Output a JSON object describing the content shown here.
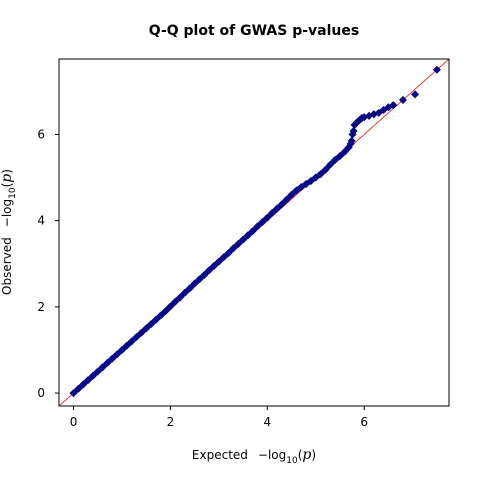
{
  "chart_data": {
    "type": "scatter",
    "title": "Q-Q plot of GWAS p-values",
    "xlabel": {
      "prefix": "Expected",
      "minus": "−log",
      "subscript": "10",
      "open": "(",
      "var": "p",
      "close": ")"
    },
    "ylabel": {
      "prefix": "Observed",
      "minus": "−log",
      "subscript": "10",
      "open": "(",
      "var": "p",
      "close": ")"
    },
    "xlim": [
      -0.3,
      7.75
    ],
    "ylim": [
      -0.3,
      7.75
    ],
    "xticks": [
      "0",
      "2",
      "4",
      "6"
    ],
    "yticks": [
      "0",
      "2",
      "4",
      "6"
    ],
    "grid": false,
    "reference_line": {
      "slope": 1,
      "intercept": 0
    },
    "colors": {
      "marker": "#0a0a8c",
      "marker_edge": "#00006a",
      "reference_line": "#e8352b",
      "axes": "#000000"
    },
    "series": [
      {
        "marker": "diamond",
        "points": [
          [
            0.0,
            0.0
          ],
          [
            0.1,
            0.1
          ],
          [
            0.2,
            0.2
          ],
          [
            0.3,
            0.3
          ],
          [
            0.4,
            0.4
          ],
          [
            0.5,
            0.5
          ],
          [
            0.6,
            0.6
          ],
          [
            0.7,
            0.7
          ],
          [
            0.8,
            0.8
          ],
          [
            0.9,
            0.9
          ],
          [
            1.0,
            1.0
          ],
          [
            1.1,
            1.1
          ],
          [
            1.2,
            1.2
          ],
          [
            1.3,
            1.3
          ],
          [
            1.4,
            1.4
          ],
          [
            1.5,
            1.5
          ],
          [
            1.6,
            1.6
          ],
          [
            1.7,
            1.7
          ],
          [
            1.8,
            1.8
          ],
          [
            1.9,
            1.9
          ],
          [
            2.0,
            2.01
          ],
          [
            2.1,
            2.12
          ],
          [
            2.2,
            2.22
          ],
          [
            2.3,
            2.33
          ],
          [
            2.4,
            2.43
          ],
          [
            2.5,
            2.54
          ],
          [
            2.6,
            2.64
          ],
          [
            2.7,
            2.74
          ],
          [
            2.8,
            2.85
          ],
          [
            2.9,
            2.95
          ],
          [
            3.0,
            3.05
          ],
          [
            3.1,
            3.15
          ],
          [
            3.2,
            3.25
          ],
          [
            3.3,
            3.36
          ],
          [
            3.4,
            3.46
          ],
          [
            3.5,
            3.56
          ],
          [
            3.6,
            3.66
          ],
          [
            3.7,
            3.76
          ],
          [
            3.8,
            3.87
          ],
          [
            3.9,
            3.97
          ],
          [
            4.0,
            4.07
          ],
          [
            4.1,
            4.18
          ],
          [
            4.2,
            4.28
          ],
          [
            4.3,
            4.38
          ],
          [
            4.4,
            4.49
          ],
          [
            4.5,
            4.6
          ],
          [
            4.6,
            4.7
          ],
          [
            4.7,
            4.78
          ],
          [
            4.8,
            4.85
          ],
          [
            4.9,
            4.92
          ],
          [
            5.0,
            5.0
          ],
          [
            5.1,
            5.08
          ],
          [
            5.2,
            5.18
          ],
          [
            5.3,
            5.3
          ],
          [
            5.4,
            5.41
          ],
          [
            5.5,
            5.5
          ],
          [
            5.6,
            5.6
          ],
          [
            5.68,
            5.7
          ],
          [
            5.72,
            5.78
          ],
          [
            5.74,
            5.85
          ],
          [
            5.76,
            6.0
          ],
          [
            5.78,
            6.08
          ],
          [
            5.8,
            6.22
          ],
          [
            5.85,
            6.28
          ],
          [
            5.9,
            6.33
          ],
          [
            5.95,
            6.38
          ],
          [
            6.0,
            6.4
          ],
          [
            6.1,
            6.43
          ],
          [
            6.2,
            6.47
          ],
          [
            6.3,
            6.5
          ],
          [
            6.4,
            6.57
          ],
          [
            6.5,
            6.63
          ],
          [
            6.6,
            6.68
          ],
          [
            6.8,
            6.8
          ],
          [
            7.05,
            6.93
          ],
          [
            7.5,
            7.5
          ]
        ]
      }
    ]
  }
}
